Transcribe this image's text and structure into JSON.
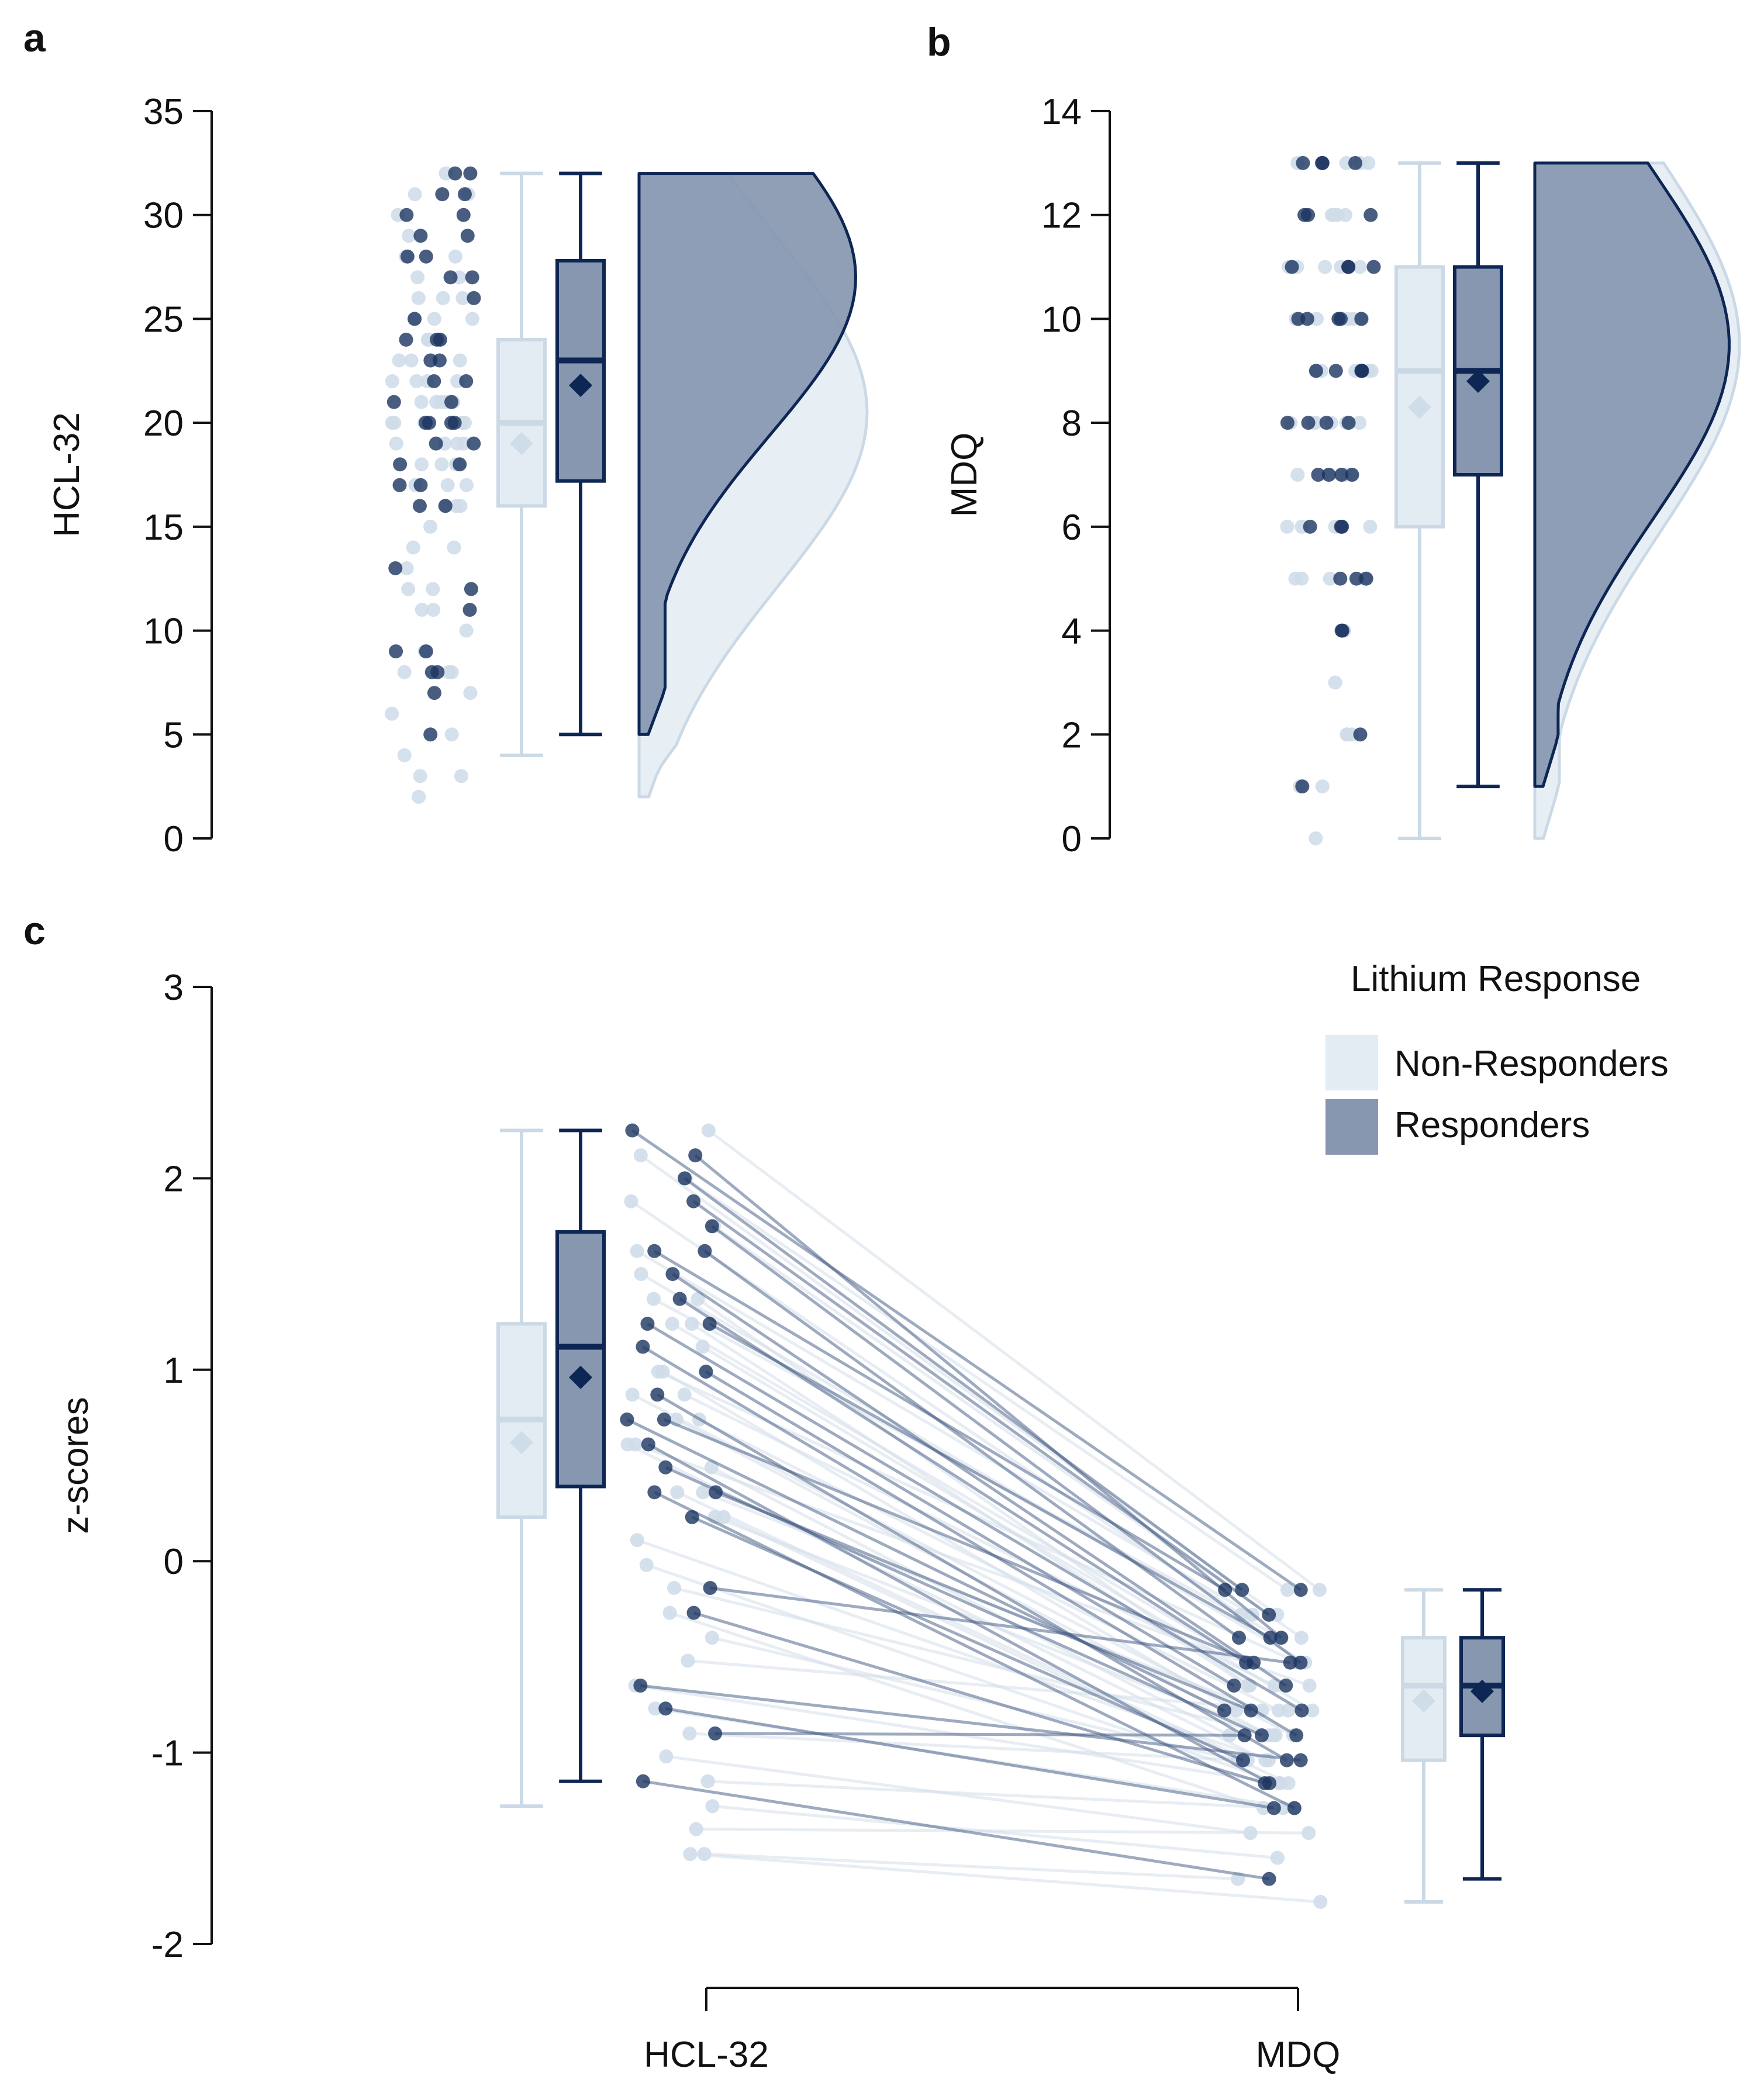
{
  "colors": {
    "non_responders_fill": "#e4ecf3",
    "non_responders_edge": "#cbd9e6",
    "responders_fill": "#8797b0",
    "responders_edge": "#0d2654",
    "axis": "#111111"
  },
  "legend": {
    "title": "Lithium Response",
    "items": [
      "Non-Responders",
      "Responders"
    ]
  },
  "chart_data": [
    {
      "panel": "a",
      "type": "raincloud",
      "ylabel": "HCL-32",
      "ylim": [
        0,
        35
      ],
      "yticks": [
        0,
        5,
        10,
        15,
        20,
        25,
        30,
        35
      ],
      "series": [
        {
          "name": "Non-Responders",
          "box": {
            "min": 4,
            "q1": 16,
            "median": 20,
            "q3": 24,
            "max": 32,
            "mean": 19
          },
          "points": [
            32,
            31,
            31,
            30,
            29,
            28,
            28,
            27,
            27,
            26,
            26,
            26,
            25,
            25,
            25,
            24,
            24,
            24,
            23,
            23,
            23,
            22,
            22,
            22,
            22,
            21,
            21,
            21,
            21,
            21,
            20,
            20,
            20,
            20,
            20,
            19,
            19,
            19,
            19,
            18,
            18,
            18,
            18,
            17,
            17,
            17,
            16,
            16,
            16,
            15,
            14,
            14,
            13,
            12,
            12,
            11,
            11,
            10,
            9,
            8,
            8,
            8,
            7,
            6,
            5,
            4,
            3,
            3,
            2
          ],
          "density_range": [
            2,
            32
          ],
          "density_peak_at": 20.5
        },
        {
          "name": "Responders",
          "box": {
            "min": 5,
            "q1": 17.2,
            "median": 23,
            "q3": 27.8,
            "max": 32,
            "mean": 21.8
          },
          "points": [
            32,
            32,
            31,
            31,
            30,
            30,
            29,
            29,
            28,
            28,
            27,
            27,
            26,
            25,
            24,
            24,
            24,
            23,
            23,
            22,
            22,
            21,
            21,
            20,
            20,
            20,
            20,
            19,
            19,
            18,
            18,
            17,
            17,
            16,
            16,
            13,
            12,
            11,
            9,
            9,
            8,
            8,
            7,
            5
          ],
          "density_range": [
            5,
            32
          ],
          "density_peak_at": 27
        }
      ]
    },
    {
      "panel": "b",
      "type": "raincloud",
      "ylabel": "MDQ",
      "ylim": [
        0,
        14
      ],
      "yticks": [
        0,
        2,
        4,
        6,
        8,
        10,
        12,
        14
      ],
      "series": [
        {
          "name": "Non-Responders",
          "box": {
            "min": 0,
            "q1": 6,
            "median": 9,
            "q3": 11,
            "max": 13,
            "mean": 8.3
          },
          "points": [
            13,
            13,
            13,
            13,
            12,
            12,
            12,
            12,
            11,
            11,
            11,
            11,
            11,
            10,
            10,
            10,
            10,
            10,
            10,
            9,
            9,
            9,
            9,
            9,
            9,
            9,
            8,
            8,
            8,
            8,
            8,
            8,
            7,
            7,
            7,
            7,
            7,
            6,
            6,
            6,
            6,
            5,
            5,
            5,
            5,
            5,
            4,
            3,
            2,
            2,
            2,
            1,
            1,
            0
          ],
          "density_range": [
            0,
            13
          ],
          "density_peak_at": 9.5
        },
        {
          "name": "Responders",
          "box": {
            "min": 1,
            "q1": 7,
            "median": 9,
            "q3": 11,
            "max": 13,
            "mean": 8.8
          },
          "points": [
            13,
            13,
            13,
            13,
            12,
            12,
            12,
            11,
            11,
            11,
            11,
            10,
            10,
            10,
            10,
            10,
            9,
            9,
            9,
            9,
            9,
            8,
            8,
            8,
            8,
            7,
            7,
            7,
            7,
            6,
            6,
            6,
            5,
            5,
            5,
            4,
            4,
            2,
            1
          ],
          "density_range": [
            1,
            13
          ],
          "density_peak_at": 9.5
        }
      ]
    },
    {
      "panel": "c",
      "type": "paired-boxplot",
      "ylabel": "z-scores",
      "ylim": [
        -2,
        3
      ],
      "yticks": [
        -2,
        -1,
        0,
        1,
        2,
        3
      ],
      "categories": [
        "HCL-32",
        "MDQ"
      ],
      "series": [
        {
          "name": "Non-Responders",
          "hcl_box": {
            "min": -1.28,
            "q1": 0.23,
            "median": 0.74,
            "q3": 1.24,
            "max": 2.25,
            "mean": 0.62
          },
          "mdq_box": {
            "min": -1.78,
            "q1": -1.04,
            "median": -0.65,
            "q3": -0.4,
            "max": -0.15,
            "mean": -0.73
          },
          "pairs": [
            [
              2.25,
              -0.15
            ],
            [
              2.12,
              -0.28
            ],
            [
              2.0,
              -0.15
            ],
            [
              1.88,
              -0.28
            ],
            [
              1.75,
              -0.4
            ],
            [
              1.62,
              -0.28
            ],
            [
              1.5,
              -0.53
            ],
            [
              1.37,
              -0.4
            ],
            [
              1.37,
              -0.65
            ],
            [
              1.24,
              -0.53
            ],
            [
              1.24,
              -0.65
            ],
            [
              1.12,
              -0.78
            ],
            [
              0.99,
              -0.53
            ],
            [
              0.99,
              -0.78
            ],
            [
              0.87,
              -0.65
            ],
            [
              0.87,
              -0.91
            ],
            [
              0.74,
              -0.78
            ],
            [
              0.74,
              -0.91
            ],
            [
              0.61,
              -1.04
            ],
            [
              0.61,
              -0.65
            ],
            [
              0.49,
              -0.91
            ],
            [
              0.36,
              -1.04
            ],
            [
              0.36,
              -0.78
            ],
            [
              0.23,
              -1.16
            ],
            [
              0.23,
              -0.91
            ],
            [
              0.11,
              -1.04
            ],
            [
              -0.02,
              -1.16
            ],
            [
              -0.14,
              -0.91
            ],
            [
              -0.27,
              -1.29
            ],
            [
              -0.4,
              -1.04
            ],
            [
              -0.52,
              -0.78
            ],
            [
              -0.65,
              -1.16
            ],
            [
              -0.77,
              -1.29
            ],
            [
              -0.9,
              -1.04
            ],
            [
              -1.02,
              -1.42
            ],
            [
              -1.15,
              -1.29
            ],
            [
              -1.28,
              -1.55
            ],
            [
              -1.4,
              -1.42
            ],
            [
              -1.53,
              -1.66
            ],
            [
              -1.53,
              -1.78
            ]
          ]
        },
        {
          "name": "Responders",
          "hcl_box": {
            "min": -1.15,
            "q1": 0.39,
            "median": 1.12,
            "q3": 1.72,
            "max": 2.25,
            "mean": 0.96
          },
          "mdq_box": {
            "min": -1.66,
            "q1": -0.91,
            "median": -0.65,
            "q3": -0.4,
            "max": -0.15,
            "mean": -0.68
          },
          "pairs": [
            [
              2.25,
              -0.15
            ],
            [
              2.12,
              -0.4
            ],
            [
              2.0,
              -0.15
            ],
            [
              1.88,
              -0.28
            ],
            [
              1.75,
              -0.53
            ],
            [
              1.62,
              -0.4
            ],
            [
              1.62,
              -0.15
            ],
            [
              1.5,
              -0.65
            ],
            [
              1.37,
              -0.53
            ],
            [
              1.24,
              -0.78
            ],
            [
              1.24,
              -0.4
            ],
            [
              1.12,
              -0.91
            ],
            [
              0.99,
              -0.65
            ],
            [
              0.87,
              -1.04
            ],
            [
              0.74,
              -0.78
            ],
            [
              0.74,
              -0.53
            ],
            [
              0.61,
              -1.16
            ],
            [
              0.49,
              -0.91
            ],
            [
              0.36,
              -1.29
            ],
            [
              0.36,
              -0.78
            ],
            [
              0.23,
              -1.04
            ],
            [
              -0.14,
              -0.53
            ],
            [
              -0.27,
              -1.16
            ],
            [
              -0.65,
              -1.04
            ],
            [
              -0.77,
              -1.29
            ],
            [
              -0.9,
              -0.91
            ],
            [
              -1.15,
              -1.66
            ]
          ]
        }
      ]
    }
  ]
}
